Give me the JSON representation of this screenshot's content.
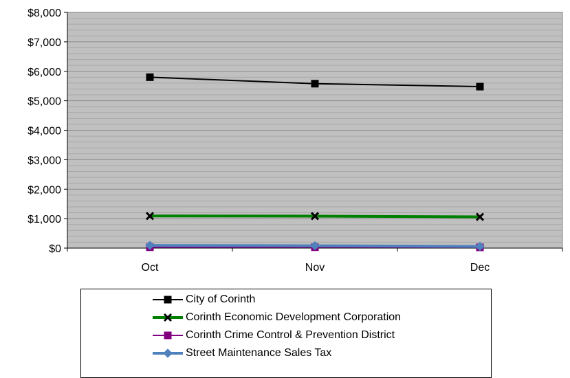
{
  "chart_data": {
    "type": "line",
    "categories": [
      "Oct",
      "Nov",
      "Dec"
    ],
    "series": [
      {
        "name": "City of Corinth",
        "values": [
          5800,
          5580,
          5480
        ],
        "color": "#000000",
        "marker": "square"
      },
      {
        "name": "Corinth Economic Development Corporation",
        "values": [
          1090,
          1085,
          1060
        ],
        "color": "#008000",
        "marker": "x"
      },
      {
        "name": "Corinth Crime Control & Prevention District",
        "values": [
          30,
          30,
          25
        ],
        "color": "#800080",
        "marker": "square"
      },
      {
        "name": "Street Maintenance Sales Tax",
        "values": [
          90,
          80,
          55
        ],
        "color": "#4F81BD",
        "marker": "diamond"
      }
    ],
    "ylim": [
      0,
      8000
    ],
    "yticks": [
      0,
      1000,
      2000,
      3000,
      4000,
      5000,
      6000,
      7000,
      8000
    ],
    "ytick_labels": [
      "$0",
      "$1,000",
      "$2,000",
      "$3,000",
      "$4,000",
      "$5,000",
      "$6,000",
      "$7,000",
      "$8,000"
    ],
    "plot_background": "#C0C0C0",
    "grid": true,
    "legend_position": "bottom"
  }
}
